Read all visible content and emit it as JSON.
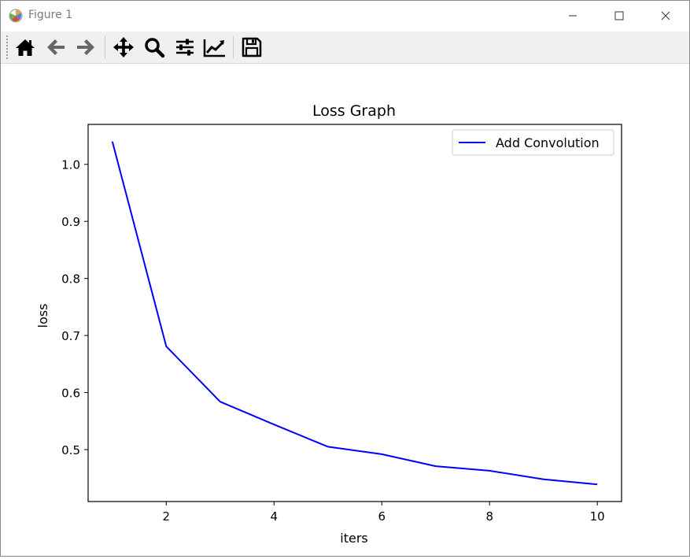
{
  "window": {
    "title": "Figure 1"
  },
  "toolbar": {
    "buttons": [
      {
        "name": "home",
        "icon": "home-icon"
      },
      {
        "name": "back",
        "icon": "arrow-left-icon"
      },
      {
        "name": "forward",
        "icon": "arrow-right-icon"
      },
      {
        "name": "pan",
        "icon": "move-icon"
      },
      {
        "name": "zoom",
        "icon": "magnifier-icon"
      },
      {
        "name": "configure-subplots",
        "icon": "sliders-icon"
      },
      {
        "name": "edit-axis",
        "icon": "line-chart-icon"
      },
      {
        "name": "save",
        "icon": "floppy-disk-icon"
      }
    ]
  },
  "chart_data": {
    "type": "line",
    "title": "Loss Graph",
    "xlabel": "iters",
    "ylabel": "loss",
    "x": [
      1,
      2,
      3,
      4,
      5,
      6,
      7,
      8,
      9,
      10
    ],
    "series": [
      {
        "name": "Add Convolution",
        "color": "#0000ff",
        "values": [
          1.04,
          0.681,
          0.584,
          0.544,
          0.505,
          0.492,
          0.471,
          0.463,
          0.448,
          0.439
        ]
      }
    ],
    "xlim": [
      0.55,
      10.45
    ],
    "ylim": [
      0.409,
      1.07
    ],
    "xticks": [
      2,
      4,
      6,
      8,
      10
    ],
    "xtick_labels": [
      "2",
      "4",
      "6",
      "8",
      "10"
    ],
    "yticks": [
      0.5,
      0.6,
      0.7,
      0.8,
      0.9,
      1.0
    ],
    "ytick_labels": [
      "0.5",
      "0.6",
      "0.7",
      "0.8",
      "0.9",
      "1.0"
    ],
    "grid": false,
    "legend_position": "upper right"
  }
}
